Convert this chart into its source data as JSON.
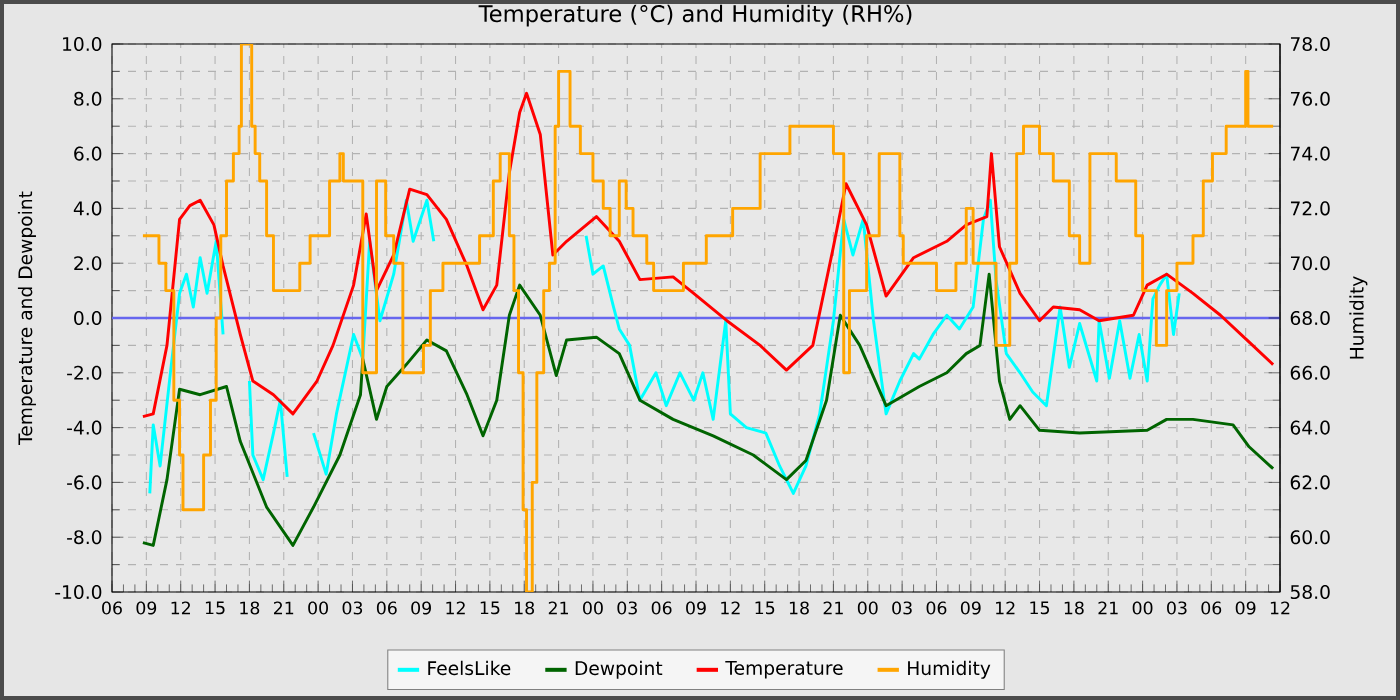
{
  "chart_data": {
    "type": "line",
    "title": "Temperature (°C) and Humidity (RH%)",
    "ylabel": "Temperature and Dewpoint",
    "y2label": "Humidity",
    "xlim": [
      6,
      108
    ],
    "xticks": [
      {
        "value": 6,
        "label": "06"
      },
      {
        "value": 9,
        "label": "09"
      },
      {
        "value": 12,
        "label": "12"
      },
      {
        "value": 15,
        "label": "15"
      },
      {
        "value": 18,
        "label": "18"
      },
      {
        "value": 21,
        "label": "21"
      },
      {
        "value": 24,
        "label": "00"
      },
      {
        "value": 27,
        "label": "03"
      },
      {
        "value": 30,
        "label": "06"
      },
      {
        "value": 33,
        "label": "09"
      },
      {
        "value": 36,
        "label": "12"
      },
      {
        "value": 39,
        "label": "15"
      },
      {
        "value": 42,
        "label": "18"
      },
      {
        "value": 45,
        "label": "21"
      },
      {
        "value": 48,
        "label": "00"
      },
      {
        "value": 51,
        "label": "03"
      },
      {
        "value": 54,
        "label": "06"
      },
      {
        "value": 57,
        "label": "09"
      },
      {
        "value": 60,
        "label": "12"
      },
      {
        "value": 63,
        "label": "15"
      },
      {
        "value": 66,
        "label": "18"
      },
      {
        "value": 69,
        "label": "21"
      },
      {
        "value": 72,
        "label": "00"
      },
      {
        "value": 75,
        "label": "03"
      },
      {
        "value": 78,
        "label": "06"
      },
      {
        "value": 81,
        "label": "09"
      },
      {
        "value": 84,
        "label": "12"
      },
      {
        "value": 87,
        "label": "15"
      },
      {
        "value": 90,
        "label": "18"
      },
      {
        "value": 93,
        "label": "21"
      },
      {
        "value": 96,
        "label": "00"
      },
      {
        "value": 99,
        "label": "03"
      },
      {
        "value": 102,
        "label": "06"
      },
      {
        "value": 105,
        "label": "09"
      },
      {
        "value": 108,
        "label": "12"
      }
    ],
    "ylim": [
      -10,
      10
    ],
    "yticks": [
      {
        "value": -10,
        "label": "-10.0"
      },
      {
        "value": -8,
        "label": "-8.0"
      },
      {
        "value": -6,
        "label": "-6.0"
      },
      {
        "value": -4,
        "label": "-4.0"
      },
      {
        "value": -2,
        "label": "-2.0"
      },
      {
        "value": 0,
        "label": "0.0"
      },
      {
        "value": 2,
        "label": "2.0"
      },
      {
        "value": 4,
        "label": "4.0"
      },
      {
        "value": 6,
        "label": "6.0"
      },
      {
        "value": 8,
        "label": "8.0"
      },
      {
        "value": 10,
        "label": "10.0"
      }
    ],
    "y2lim": [
      58,
      78
    ],
    "y2ticks": [
      {
        "value": 58,
        "label": "58.0"
      },
      {
        "value": 60,
        "label": "60.0"
      },
      {
        "value": 62,
        "label": "62.0"
      },
      {
        "value": 64,
        "label": "64.0"
      },
      {
        "value": 66,
        "label": "66.0"
      },
      {
        "value": 68,
        "label": "68.0"
      },
      {
        "value": 70,
        "label": "70.0"
      },
      {
        "value": 72,
        "label": "72.0"
      },
      {
        "value": 74,
        "label": "74.0"
      },
      {
        "value": 76,
        "label": "76.0"
      },
      {
        "value": 78,
        "label": "78.0"
      }
    ],
    "grid": true,
    "legend": "bottom",
    "ref_lines": [
      {
        "axis": "y",
        "value": 0,
        "color": "#6666ee"
      }
    ],
    "series": [
      {
        "name": "FeelsLike",
        "color": "#00ffff",
        "x": [
          9.3,
          9.6,
          10.2,
          11.1,
          11.9,
          12.5,
          13.1,
          13.7,
          14.3,
          15.1,
          15.7,
          16.8,
          18.0,
          18.3,
          19.2,
          20.1,
          20.7,
          21.3,
          22.5,
          23.6,
          24.7,
          25.6,
          27.1,
          27.9,
          28.5,
          29.4,
          30.6,
          31.7,
          32.3,
          33.5,
          34.1,
          40.0,
          47.4,
          48.0,
          48.9,
          49.8,
          50.3,
          51.2,
          52.1,
          53.5,
          54.4,
          55.6,
          56.8,
          57.6,
          58.5,
          59.6,
          60.0,
          61.4,
          63.1,
          64.3,
          65.5,
          66.6,
          67.8,
          69.0,
          69.9,
          70.7,
          71.6,
          72.5,
          73.6,
          74.8,
          76.0,
          76.5,
          77.7,
          78.9,
          80.0,
          81.2,
          82.1,
          82.7,
          83.2,
          84.1,
          85.3,
          86.4,
          87.6,
          88.1,
          88.8,
          89.6,
          90.5,
          92.0,
          92.2,
          93.1,
          94.0,
          94.9,
          95.7,
          96.4,
          96.9,
          97.5,
          98.1,
          98.7,
          99.2
        ],
        "values": [
          -6.4,
          -3.9,
          -5.4,
          -2.0,
          0.9,
          1.6,
          0.4,
          2.2,
          0.9,
          2.8,
          -0.6,
          null,
          -2.3,
          -5.0,
          -5.9,
          -4.2,
          -3.0,
          -5.8,
          null,
          -4.2,
          -5.7,
          -3.5,
          -0.6,
          -1.5,
          2.8,
          -0.1,
          1.6,
          4.3,
          2.8,
          4.3,
          2.8,
          null,
          3.0,
          1.6,
          1.9,
          0.4,
          -0.4,
          -1.0,
          -3.0,
          -2.0,
          -3.2,
          -2.0,
          -3.0,
          -2.0,
          -3.7,
          -0.1,
          -3.5,
          -4.0,
          -4.2,
          -5.4,
          -6.4,
          -5.4,
          -3.5,
          -0.1,
          3.6,
          2.3,
          3.6,
          -0.1,
          -3.5,
          -2.3,
          -1.3,
          -1.5,
          -0.6,
          0.1,
          -0.4,
          0.4,
          3.6,
          4.3,
          1.4,
          -1.3,
          -2.0,
          -2.7,
          -3.2,
          -1.7,
          0.4,
          -1.8,
          -0.2,
          -2.3,
          -0.1,
          -2.2,
          -0.1,
          -2.2,
          -0.6,
          -2.3,
          0.7,
          1.2,
          1.6,
          -0.6,
          0.9
        ]
      },
      {
        "name": "Dewpoint",
        "color": "#006400",
        "x": [
          8.7,
          9.6,
          10.8,
          11.9,
          13.7,
          16.0,
          17.2,
          19.5,
          21.8,
          23.6,
          25.9,
          27.7,
          27.9,
          29.1,
          30.0,
          31.7,
          33.5,
          35.2,
          37.0,
          38.4,
          39.6,
          40.7,
          41.6,
          43.4,
          44.8,
          45.7,
          48.3,
          50.3,
          52.1,
          55.0,
          58.5,
          62.0,
          64.9,
          66.6,
          68.4,
          69.6,
          71.3,
          73.6,
          76.5,
          78.9,
          80.6,
          81.8,
          82.6,
          83.5,
          84.4,
          85.3,
          87.0,
          90.5,
          96.4,
          98.1,
          100.4,
          103.9,
          105.3,
          107.4
        ],
        "values": [
          -8.2,
          -8.3,
          -5.9,
          -2.6,
          -2.8,
          -2.5,
          -4.5,
          -6.9,
          -8.3,
          -6.9,
          -5.0,
          -2.8,
          -1.5,
          -3.7,
          -2.5,
          -1.7,
          -0.8,
          -1.2,
          -2.8,
          -4.3,
          -3.0,
          0.1,
          1.2,
          0.1,
          -2.1,
          -0.8,
          -0.7,
          -1.3,
          -3.0,
          -3.7,
          -4.3,
          -5.0,
          -5.9,
          -5.2,
          -3.0,
          0.1,
          -1.0,
          -3.2,
          -2.5,
          -2.0,
          -1.3,
          -1.0,
          1.6,
          -2.3,
          -3.7,
          -3.2,
          -4.1,
          -4.2,
          -4.1,
          -3.7,
          -3.7,
          -3.9,
          -4.7,
          -5.5
        ]
      },
      {
        "name": "Temperature",
        "color": "#ff0000",
        "x": [
          8.7,
          9.6,
          10.8,
          11.9,
          12.8,
          13.7,
          14.9,
          15.7,
          17.2,
          18.3,
          20.1,
          21.8,
          23.9,
          25.3,
          27.1,
          28.2,
          29.1,
          30.6,
          32.0,
          33.5,
          35.2,
          37.0,
          38.4,
          39.6,
          40.7,
          41.6,
          42.2,
          43.4,
          44.5,
          45.7,
          48.3,
          50.3,
          52.1,
          55.0,
          56.8,
          59.7,
          62.6,
          64.9,
          67.2,
          69.0,
          70.1,
          71.9,
          73.6,
          76.0,
          78.9,
          80.6,
          82.4,
          82.8,
          83.5,
          85.3,
          87.0,
          88.2,
          90.5,
          92.2,
          95.2,
          96.4,
          98.1,
          100.4,
          102.8,
          105.1,
          107.4
        ],
        "values": [
          -3.6,
          -3.5,
          -1.0,
          3.6,
          4.1,
          4.3,
          3.4,
          1.9,
          -0.6,
          -2.3,
          -2.8,
          -3.5,
          -2.3,
          -1.0,
          1.2,
          3.8,
          1.0,
          2.3,
          4.7,
          4.5,
          3.6,
          1.9,
          0.3,
          1.2,
          5.3,
          7.5,
          8.2,
          6.7,
          2.3,
          2.8,
          3.7,
          2.8,
          1.4,
          1.5,
          0.9,
          -0.1,
          -1.0,
          -1.9,
          -1.0,
          2.6,
          4.9,
          3.4,
          0.8,
          2.2,
          2.8,
          3.4,
          3.7,
          6.0,
          2.6,
          0.9,
          -0.1,
          0.4,
          0.3,
          -0.1,
          0.1,
          1.2,
          1.6,
          0.9,
          0.1,
          -0.8,
          -1.7
        ]
      },
      {
        "name": "Humidity",
        "color": "#ffa500",
        "type": "step",
        "axis": "y2",
        "x": [
          8.7,
          10.1,
          10.7,
          11.4,
          11.9,
          12.2,
          14.0,
          14.6,
          15.1,
          15.5,
          16.0,
          16.6,
          17.1,
          17.3,
          18.2,
          18.5,
          18.9,
          19.5,
          20.1,
          22.4,
          23.3,
          25.0,
          25.9,
          26.2,
          27.9,
          29.1,
          29.9,
          30.6,
          31.4,
          33.2,
          33.8,
          34.9,
          38.1,
          39.3,
          39.9,
          40.7,
          41.1,
          41.5,
          41.9,
          42.2,
          42.7,
          43.1,
          43.7,
          44.2,
          44.7,
          45.0,
          46.0,
          46.9,
          48.0,
          48.9,
          49.5,
          50.3,
          50.9,
          51.5,
          52.7,
          53.3,
          55.9,
          57.9,
          60.2,
          62.6,
          65.2,
          69.0,
          69.9,
          70.4,
          71.9,
          73.0,
          74.8,
          75.1,
          78.0,
          79.7,
          80.6,
          81.2,
          83.2,
          84.4,
          85.0,
          85.6,
          87.0,
          88.2,
          89.6,
          90.5,
          91.4,
          93.7,
          95.4,
          96.0,
          97.2,
          98.1,
          99.0,
          100.4,
          101.3,
          102.1,
          103.3,
          105.0,
          105.2,
          107.4
        ],
        "values": [
          71,
          70,
          69,
          65,
          63,
          61,
          63,
          65,
          68,
          71,
          73,
          74,
          75,
          78,
          75,
          74,
          73,
          71,
          69,
          70,
          71,
          73,
          74,
          73,
          66,
          73,
          71,
          70,
          66,
          67,
          69,
          70,
          71,
          73,
          74,
          71,
          69,
          66,
          61,
          58,
          62,
          66,
          69,
          70,
          75,
          77,
          75,
          74,
          73,
          72,
          71,
          73,
          72,
          71,
          70,
          69,
          70,
          71,
          72,
          74,
          75,
          74,
          66,
          69,
          71,
          74,
          71,
          70,
          69,
          70,
          72,
          70,
          67,
          70,
          74,
          75,
          74,
          73,
          71,
          70,
          74,
          73,
          71,
          69,
          67,
          69,
          70,
          71,
          73,
          74,
          75,
          77,
          75,
          75
        ]
      }
    ]
  }
}
